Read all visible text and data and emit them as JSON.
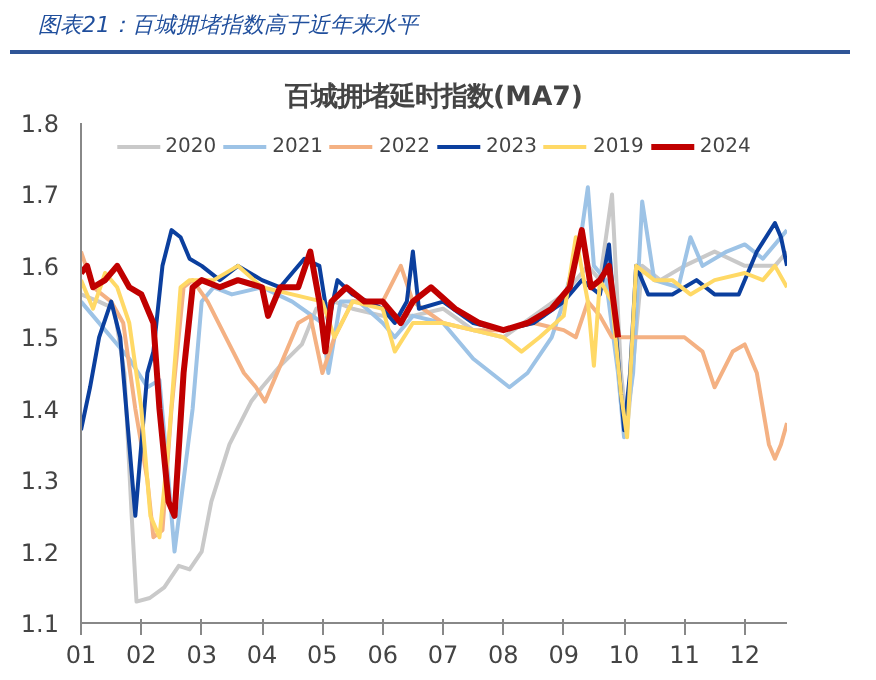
{
  "chart_data": {
    "type": "line",
    "title": "图表21：百城拥堵指数高于近年来水平",
    "subtitle": "百城拥堵延时指数(MA7)",
    "xlim": [
      1,
      12.7
    ],
    "xticks": [
      {
        "value": 1,
        "label": "01"
      },
      {
        "value": 2,
        "label": "02"
      },
      {
        "value": 3,
        "label": "03"
      },
      {
        "value": 4,
        "label": "04"
      },
      {
        "value": 5,
        "label": "05"
      },
      {
        "value": 6,
        "label": "06"
      },
      {
        "value": 7,
        "label": "07"
      },
      {
        "value": 8,
        "label": "08"
      },
      {
        "value": 9,
        "label": "09"
      },
      {
        "value": 10,
        "label": "10"
      },
      {
        "value": 11,
        "label": "11"
      },
      {
        "value": 12,
        "label": "12"
      }
    ],
    "ylim": [
      1.1,
      1.8
    ],
    "yticks": [
      1.1,
      1.2,
      1.3,
      1.4,
      1.5,
      1.6,
      1.7,
      1.8
    ],
    "grid": false,
    "legend": "top",
    "marker": "none",
    "line_style": "solid",
    "series": [
      {
        "name": "2020",
        "color": "#c9c9c9",
        "x": [
          1,
          1.3,
          1.55,
          1.72,
          1.84,
          1.92,
          2.14,
          2.38,
          2.62,
          2.8,
          3.0,
          3.16,
          3.46,
          3.82,
          4.0,
          4.3,
          4.66,
          4.9,
          5.2,
          5.5,
          6,
          6.5,
          7,
          7.5,
          8,
          8.5,
          9,
          9.4,
          9.6,
          9.8,
          9.95,
          10.05,
          10.3,
          10.6,
          11,
          11.5,
          12,
          12.5,
          12.7
        ],
        "values": [
          1.56,
          1.55,
          1.54,
          1.45,
          1.25,
          1.13,
          1.135,
          1.15,
          1.18,
          1.175,
          1.2,
          1.27,
          1.35,
          1.41,
          1.43,
          1.46,
          1.49,
          1.54,
          1.55,
          1.54,
          1.53,
          1.53,
          1.54,
          1.51,
          1.5,
          1.53,
          1.56,
          1.6,
          1.58,
          1.7,
          1.45,
          1.37,
          1.6,
          1.58,
          1.6,
          1.62,
          1.6,
          1.6,
          1.62
        ]
      },
      {
        "name": "2021",
        "color": "#9dc3e6",
        "x": [
          1,
          1.2,
          1.5,
          1.8,
          2.1,
          2.3,
          2.45,
          2.55,
          2.7,
          2.85,
          3.0,
          3.2,
          3.5,
          4,
          4.5,
          5,
          5.1,
          5.3,
          5.6,
          6,
          6.2,
          6.5,
          7,
          7.5,
          8.1,
          8.4,
          8.8,
          9,
          9.3,
          9.4,
          9.5,
          9.7,
          9.9,
          10,
          10.15,
          10.3,
          10.5,
          10.9,
          11.1,
          11.3,
          11.7,
          12,
          12.3,
          12.7
        ],
        "values": [
          1.55,
          1.53,
          1.5,
          1.47,
          1.43,
          1.44,
          1.3,
          1.2,
          1.3,
          1.4,
          1.55,
          1.57,
          1.56,
          1.57,
          1.55,
          1.52,
          1.45,
          1.55,
          1.55,
          1.52,
          1.5,
          1.53,
          1.52,
          1.47,
          1.43,
          1.45,
          1.5,
          1.55,
          1.65,
          1.71,
          1.6,
          1.58,
          1.45,
          1.36,
          1.45,
          1.69,
          1.58,
          1.57,
          1.64,
          1.6,
          1.62,
          1.63,
          1.61,
          1.65
        ]
      },
      {
        "name": "2022",
        "color": "#f4b183",
        "x": [
          1,
          1.2,
          1.5,
          1.7,
          1.9,
          2.1,
          2.2,
          2.35,
          2.5,
          2.7,
          2.85,
          3.1,
          3.4,
          3.7,
          3.9,
          4.05,
          4.3,
          4.6,
          4.8,
          5.0,
          5.2,
          5.5,
          6,
          6.3,
          6.5,
          7,
          7.5,
          8,
          8.5,
          9,
          9.2,
          9.4,
          9.6,
          9.8,
          10,
          10.3,
          10.6,
          11,
          11.3,
          11.5,
          11.8,
          12,
          12.2,
          12.4,
          12.5,
          12.6,
          12.7
        ],
        "values": [
          1.62,
          1.57,
          1.55,
          1.52,
          1.4,
          1.3,
          1.22,
          1.23,
          1.4,
          1.57,
          1.58,
          1.55,
          1.5,
          1.45,
          1.43,
          1.41,
          1.46,
          1.52,
          1.53,
          1.45,
          1.5,
          1.55,
          1.55,
          1.6,
          1.55,
          1.52,
          1.51,
          1.51,
          1.52,
          1.51,
          1.5,
          1.55,
          1.53,
          1.5,
          1.5,
          1.5,
          1.5,
          1.5,
          1.48,
          1.43,
          1.48,
          1.49,
          1.45,
          1.35,
          1.33,
          1.35,
          1.38
        ]
      },
      {
        "name": "2023",
        "color": "#0b3f9e",
        "x": [
          1,
          1.15,
          1.3,
          1.5,
          1.65,
          1.8,
          1.9,
          2.0,
          2.1,
          2.2,
          2.35,
          2.5,
          2.65,
          2.8,
          3.0,
          3.3,
          3.6,
          4,
          4.3,
          4.7,
          4.95,
          5.1,
          5.25,
          5.5,
          6,
          6.2,
          6.4,
          6.5,
          6.6,
          7,
          7.5,
          8,
          8.5,
          9,
          9.3,
          9.6,
          9.75,
          9.85,
          10.0,
          10.1,
          10.2,
          10.4,
          10.8,
          11.2,
          11.5,
          11.9,
          12.2,
          12.5,
          12.6,
          12.7
        ],
        "values": [
          1.37,
          1.43,
          1.5,
          1.55,
          1.5,
          1.35,
          1.25,
          1.35,
          1.45,
          1.48,
          1.6,
          1.65,
          1.64,
          1.61,
          1.6,
          1.58,
          1.6,
          1.58,
          1.57,
          1.61,
          1.6,
          1.52,
          1.58,
          1.56,
          1.54,
          1.52,
          1.55,
          1.62,
          1.54,
          1.55,
          1.52,
          1.51,
          1.52,
          1.55,
          1.58,
          1.56,
          1.63,
          1.52,
          1.37,
          1.45,
          1.6,
          1.56,
          1.56,
          1.58,
          1.56,
          1.56,
          1.62,
          1.66,
          1.64,
          1.6
        ]
      },
      {
        "name": "2019",
        "color": "#ffd966",
        "x": [
          1,
          1.2,
          1.4,
          1.6,
          1.8,
          2.0,
          2.15,
          2.3,
          2.45,
          2.65,
          2.8,
          3.2,
          3.6,
          4,
          4.5,
          5,
          5.2,
          5.5,
          6,
          6.2,
          6.5,
          7,
          7.5,
          8,
          8.3,
          8.6,
          9,
          9.2,
          9.4,
          9.5,
          9.6,
          9.8,
          9.95,
          10.05,
          10.2,
          10.5,
          10.8,
          11.1,
          11.5,
          12,
          12.3,
          12.5,
          12.7
        ],
        "values": [
          1.58,
          1.54,
          1.59,
          1.57,
          1.52,
          1.4,
          1.25,
          1.22,
          1.35,
          1.57,
          1.58,
          1.58,
          1.6,
          1.57,
          1.56,
          1.55,
          1.5,
          1.55,
          1.54,
          1.48,
          1.52,
          1.52,
          1.51,
          1.5,
          1.48,
          1.5,
          1.53,
          1.64,
          1.55,
          1.46,
          1.58,
          1.55,
          1.42,
          1.36,
          1.6,
          1.58,
          1.58,
          1.56,
          1.58,
          1.59,
          1.58,
          1.6,
          1.57
        ]
      },
      {
        "name": "2024",
        "color": "#c00000",
        "x": [
          1,
          1.1,
          1.2,
          1.4,
          1.6,
          1.8,
          2.0,
          2.2,
          2.3,
          2.45,
          2.55,
          2.7,
          2.85,
          3.0,
          3.3,
          3.6,
          4,
          4.1,
          4.3,
          4.6,
          4.8,
          4.95,
          5.05,
          5.15,
          5.4,
          5.7,
          6,
          6.3,
          6.5,
          6.8,
          7.2,
          7.6,
          8,
          8.4,
          8.8,
          9.1,
          9.3,
          9.45,
          9.6,
          9.75,
          9.9
        ],
        "values": [
          1.59,
          1.6,
          1.57,
          1.58,
          1.6,
          1.57,
          1.56,
          1.52,
          1.4,
          1.27,
          1.25,
          1.45,
          1.57,
          1.58,
          1.57,
          1.58,
          1.57,
          1.53,
          1.57,
          1.57,
          1.62,
          1.55,
          1.48,
          1.55,
          1.57,
          1.55,
          1.55,
          1.52,
          1.55,
          1.57,
          1.54,
          1.52,
          1.51,
          1.52,
          1.54,
          1.57,
          1.65,
          1.57,
          1.58,
          1.6,
          1.5
        ]
      }
    ]
  }
}
